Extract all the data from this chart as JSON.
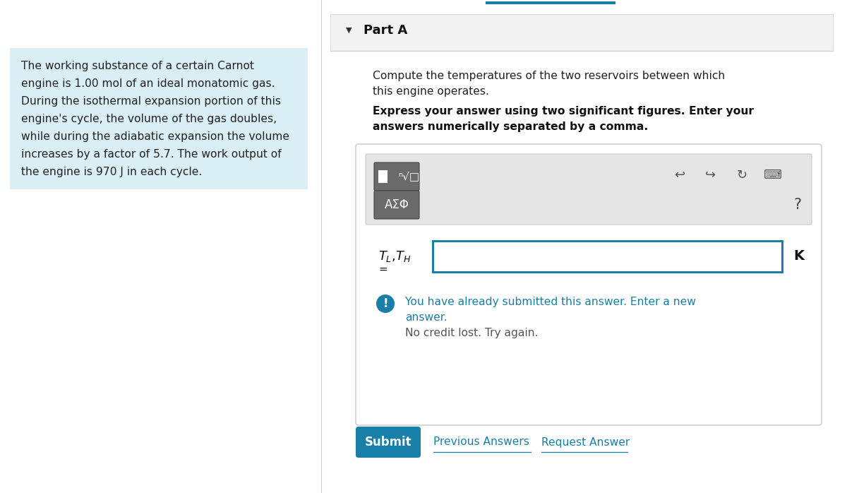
{
  "bg_color": "#ffffff",
  "left_panel_bg": "#daeef5",
  "left_panel_text_lines": [
    "The working substance of a certain Carnot",
    "engine is 1.00 mol of an ideal monatomic gas.",
    "During the isothermal expansion portion of this",
    "engine's cycle, the volume of the gas doubles,",
    "while during the adiabatic expansion the volume",
    "increases by a factor of 5.7. The work output of",
    "the engine is 970 J in each cycle."
  ],
  "part_a_label": "Part A",
  "triangle_char": "▼",
  "question_normal_lines": [
    "Compute the temperatures of the two reservoirs between which",
    "this engine operates."
  ],
  "question_bold_lines": [
    "Express your answer using two significant figures. Enter your",
    "answers numerically separated by a comma."
  ],
  "toolbar_bg": "#e5e5e5",
  "toolbar_math_btn_bg": "#6b6b6b",
  "toolbar_greek_btn_bg": "#6b6b6b",
  "toolbar_greek_btn_text": "ΑΣΦ",
  "toolbar_question_mark": "?",
  "input_border_color": "#1a7fa8",
  "unit_label": "K",
  "info_icon_color": "#1a7fa8",
  "info_text_blue_lines": [
    "You have already submitted this answer. Enter a new",
    "answer."
  ],
  "info_text_gray": "No credit lost. Try again.",
  "submit_btn_text": "Submit",
  "submit_btn_bg": "#1a7fa8",
  "prev_answers_text": "Previous Answers",
  "request_answer_text": "Request Answer",
  "link_color": "#1a7fa8",
  "divider_color": "#cccccc",
  "part_a_bg": "#f2f2f2",
  "top_line_color": "#1a7fa8",
  "panel_border_color": "#c8c8c8",
  "input_box_bg": "#ffffff",
  "text_color": "#222222"
}
